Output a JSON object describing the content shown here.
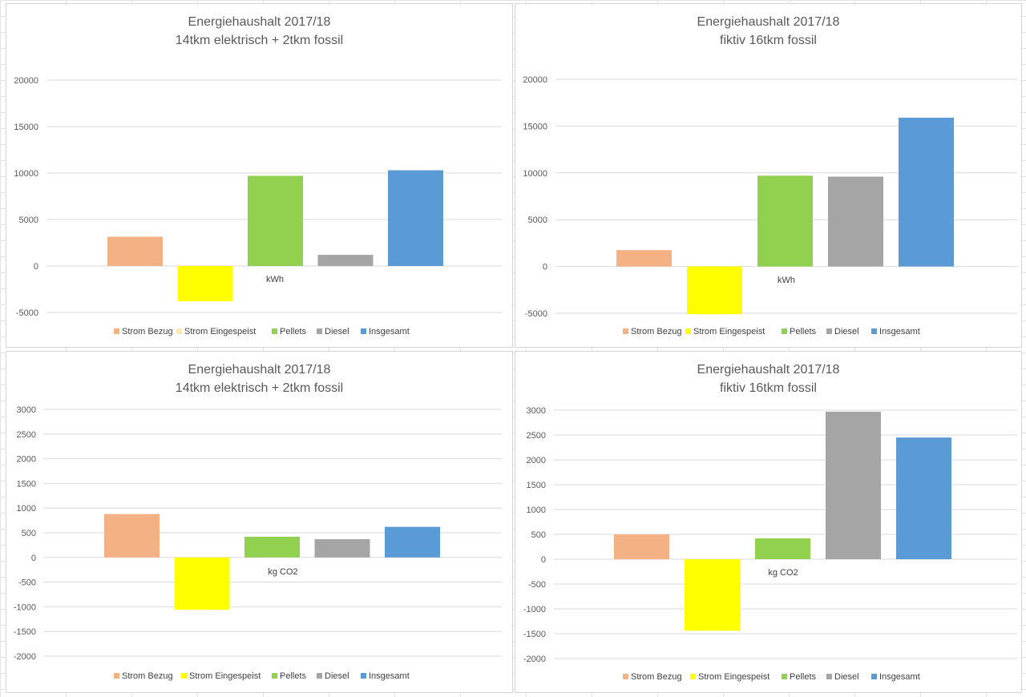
{
  "colors": {
    "strom_bezug": "#f4b183",
    "strom_eingespeist": "#ffff00",
    "pellets": "#92d050",
    "diesel": "#a5a5a5",
    "insgesamt": "#5b9bd5"
  },
  "chart_data": [
    {
      "type": "bar",
      "title": [
        "Energiehaushalt 2017/18",
        "14tkm elektrisch + 2tkm fossil"
      ],
      "unit": "kWh",
      "yticks": [
        20000,
        15000,
        10000,
        5000,
        0,
        -5000
      ],
      "ylim": [
        -5000,
        20000
      ],
      "series": [
        {
          "name": "Strom Bezug",
          "value": 3150
        },
        {
          "name": "Strom Eingespeist",
          "value": -3800
        },
        {
          "name": "Pellets",
          "value": 9700
        },
        {
          "name": "Diesel",
          "value": 1200
        },
        {
          "name": "Insgesamt",
          "value": 10300
        }
      ],
      "legend_position": "bottom",
      "legend_strom_eingespeist_swatch_faded": true
    },
    {
      "type": "bar",
      "title": [
        "Energiehaushalt 2017/18",
        "fiktiv 16tkm fossil"
      ],
      "unit": "kWh",
      "yticks": [
        20000,
        15000,
        10000,
        5000,
        0,
        -5000
      ],
      "ylim": [
        -5000,
        20000
      ],
      "series": [
        {
          "name": "Strom Bezug",
          "value": 1750
        },
        {
          "name": "Strom Eingespeist",
          "value": -5100
        },
        {
          "name": "Pellets",
          "value": 9700
        },
        {
          "name": "Diesel",
          "value": 9600
        },
        {
          "name": "Insgesamt",
          "value": 15900
        }
      ],
      "legend_position": "bottom"
    },
    {
      "type": "bar",
      "title": [
        "Energiehaushalt 2017/18",
        "14tkm elektrisch + 2tkm fossil"
      ],
      "unit": "kg CO2",
      "yticks": [
        3000,
        2500,
        2000,
        1500,
        1000,
        500,
        0,
        -500,
        -1000,
        -1500,
        -2000
      ],
      "ylim": [
        -2000,
        3000
      ],
      "series": [
        {
          "name": "Strom Bezug",
          "value": 880
        },
        {
          "name": "Strom Eingespeist",
          "value": -1060
        },
        {
          "name": "Pellets",
          "value": 420
        },
        {
          "name": "Diesel",
          "value": 370
        },
        {
          "name": "Insgesamt",
          "value": 620
        }
      ],
      "legend_position": "bottom"
    },
    {
      "type": "bar",
      "title": [
        "Energiehaushalt 2017/18",
        "fiktiv 16tkm fossil"
      ],
      "unit": "kg CO2",
      "yticks": [
        3000,
        2500,
        2000,
        1500,
        1000,
        500,
        0,
        -500,
        -1000,
        -1500,
        -2000
      ],
      "ylim": [
        -2000,
        3000
      ],
      "series": [
        {
          "name": "Strom Bezug",
          "value": 500
        },
        {
          "name": "Strom Eingespeist",
          "value": -1440
        },
        {
          "name": "Pellets",
          "value": 420
        },
        {
          "name": "Diesel",
          "value": 2970
        },
        {
          "name": "Insgesamt",
          "value": 2450
        }
      ],
      "legend_position": "bottom"
    }
  ]
}
